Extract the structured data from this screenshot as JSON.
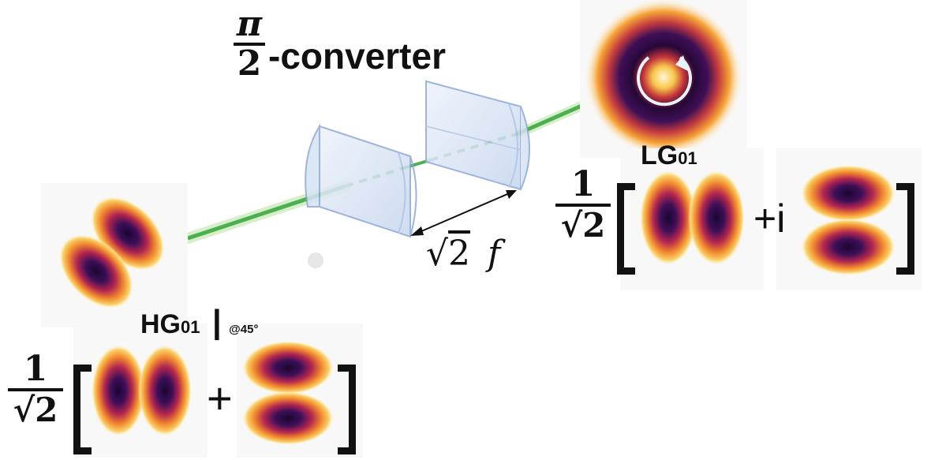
{
  "converter_label": {
    "numerator": "π",
    "denominator": "2",
    "suffix": "-converter"
  },
  "lg_label": {
    "main": "LG",
    "sub": "01"
  },
  "hg_label": {
    "main": "HG",
    "sub": "01",
    "bar": "|",
    "angle": "@45°"
  },
  "distance_label": {
    "root": "2",
    "var": "f"
  },
  "equation_lg": {
    "num": "1",
    "den": "√2",
    "op": "+i"
  },
  "equation_hg": {
    "num": "1",
    "den": "√2",
    "op": "+"
  },
  "colors": {
    "beam": "#4caf50",
    "lens": "#c7d7f0",
    "lens_edge": "#8ea8d6",
    "mode_outer": "#f6c044",
    "mode_mid": "#d1452f",
    "mode_core": "#2b0a3d"
  }
}
